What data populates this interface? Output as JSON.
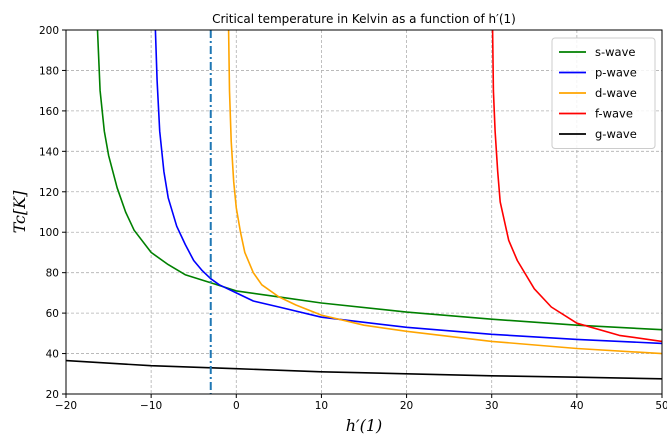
{
  "chart_data": {
    "type": "line",
    "title": "Critical temperature in Kelvin as a function of h′(1)",
    "xlabel": "h′(1)",
    "ylabel": "Tc[K]",
    "xlim": [
      -20,
      50
    ],
    "ylim": [
      20,
      200
    ],
    "xticks": [
      -20,
      -10,
      0,
      10,
      20,
      30,
      40,
      50
    ],
    "yticks": [
      20,
      40,
      60,
      80,
      100,
      120,
      140,
      160,
      180,
      200
    ],
    "grid": true,
    "legend_position": "top-right",
    "vertical_line": {
      "x": -3,
      "color": "#1f77b4",
      "style": "dash-dot"
    },
    "series": [
      {
        "name": "s-wave",
        "color": "#008000",
        "points": [
          [
            -16.3,
            200
          ],
          [
            -16,
            170
          ],
          [
            -15.5,
            150
          ],
          [
            -15,
            138
          ],
          [
            -14,
            122
          ],
          [
            -13,
            110
          ],
          [
            -12,
            101
          ],
          [
            -10,
            90
          ],
          [
            -8,
            84
          ],
          [
            -6,
            79
          ],
          [
            -3,
            75
          ],
          [
            0,
            71
          ],
          [
            5,
            68
          ],
          [
            10,
            65
          ],
          [
            20,
            60.5
          ],
          [
            30,
            57
          ],
          [
            40,
            54
          ],
          [
            50,
            51.8
          ]
        ]
      },
      {
        "name": "p-wave",
        "color": "#0000ff",
        "points": [
          [
            -9.5,
            200
          ],
          [
            -9.3,
            175
          ],
          [
            -9,
            150
          ],
          [
            -8.5,
            130
          ],
          [
            -8,
            117
          ],
          [
            -7,
            103
          ],
          [
            -6,
            94
          ],
          [
            -5,
            86
          ],
          [
            -4,
            81
          ],
          [
            -3,
            77
          ],
          [
            -2,
            74
          ],
          [
            0,
            70
          ],
          [
            2,
            66
          ],
          [
            5,
            63
          ],
          [
            10,
            58
          ],
          [
            20,
            53
          ],
          [
            30,
            49.5
          ],
          [
            40,
            47
          ],
          [
            50,
            45
          ]
        ]
      },
      {
        "name": "d-wave",
        "color": "#ffa500",
        "points": [
          [
            -0.9,
            200
          ],
          [
            -0.8,
            170
          ],
          [
            -0.6,
            145
          ],
          [
            -0.3,
            125
          ],
          [
            0,
            112
          ],
          [
            0.5,
            100
          ],
          [
            1,
            90
          ],
          [
            2,
            80
          ],
          [
            3,
            74
          ],
          [
            5,
            68
          ],
          [
            7,
            64
          ],
          [
            10,
            59
          ],
          [
            15,
            54
          ],
          [
            20,
            51
          ],
          [
            30,
            46
          ],
          [
            40,
            42.5
          ],
          [
            50,
            40
          ]
        ]
      },
      {
        "name": "f-wave",
        "color": "#ff0000",
        "points": [
          [
            30.1,
            200
          ],
          [
            30.2,
            170
          ],
          [
            30.4,
            150
          ],
          [
            30.7,
            130
          ],
          [
            31,
            115
          ],
          [
            32,
            96
          ],
          [
            33,
            86
          ],
          [
            35,
            72
          ],
          [
            37,
            63
          ],
          [
            40,
            55
          ],
          [
            45,
            49
          ],
          [
            50,
            46
          ]
        ]
      },
      {
        "name": "g-wave",
        "color": "#000000",
        "points": [
          [
            -20,
            36.5
          ],
          [
            -10,
            34
          ],
          [
            0,
            32.5
          ],
          [
            10,
            31
          ],
          [
            20,
            30
          ],
          [
            30,
            29
          ],
          [
            40,
            28.3
          ],
          [
            50,
            27.5
          ]
        ]
      }
    ]
  }
}
